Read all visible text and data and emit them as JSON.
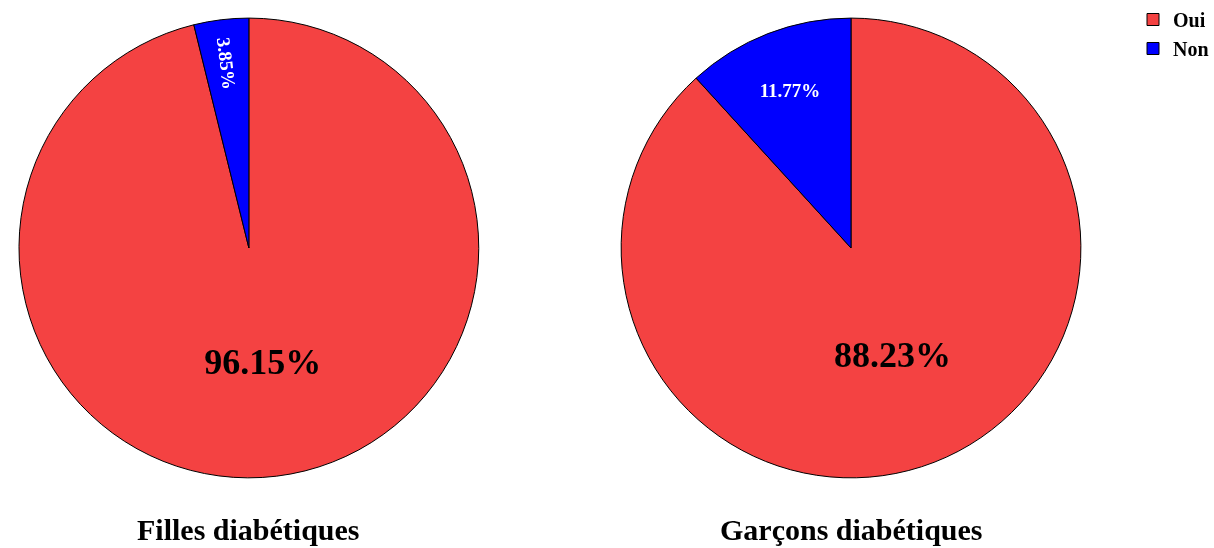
{
  "chart_data": [
    {
      "type": "pie",
      "title": "Filles diabétiques",
      "categories": [
        "Oui",
        "Non"
      ],
      "values": [
        96.15,
        3.85
      ],
      "colors": [
        "#f44242",
        "#0000ff"
      ],
      "value_labels": [
        "96.15%",
        "3.85%"
      ],
      "legend": "top right"
    },
    {
      "type": "pie",
      "title": "Garçons diabétiques",
      "categories": [
        null,
        null
      ],
      "values": [
        88.23,
        11.77
      ],
      "colors": [
        "#f44242",
        "#0000ff"
      ],
      "value_labels": [
        "88.23%",
        "11.77%"
      ],
      "legend": false
    }
  ]
}
